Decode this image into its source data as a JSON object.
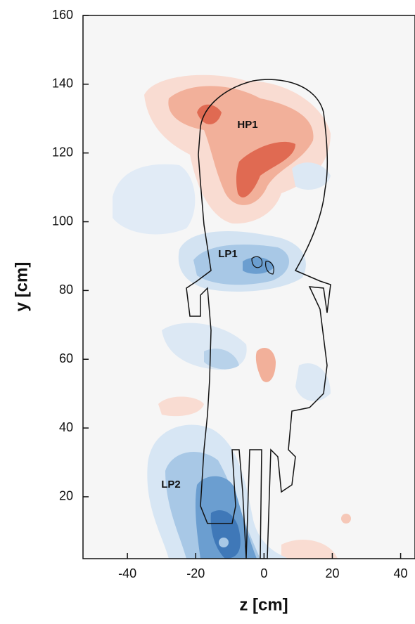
{
  "chart_data": {
    "type": "contour",
    "xlabel": "z [cm]",
    "ylabel": "y [cm]",
    "xlim": [
      -53,
      44
    ],
    "ylim": [
      2,
      160
    ],
    "xticks": [
      -40,
      -20,
      0,
      20,
      40
    ],
    "yticks": [
      20,
      40,
      60,
      80,
      100,
      120,
      140,
      160
    ],
    "annotations": [
      "HP1",
      "LP1",
      "LP2"
    ]
  }
}
